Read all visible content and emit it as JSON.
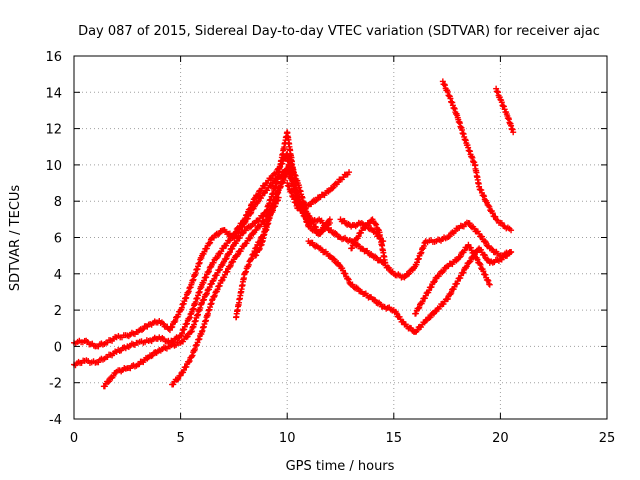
{
  "chart_data": {
    "type": "scatter",
    "title": "Day 087 of 2015, Sidereal Day-to-day VTEC variation (SDTVAR) for receiver ajac",
    "xlabel": "GPS time / hours",
    "ylabel": "SDTVAR / TECUs",
    "xlim": [
      0,
      25
    ],
    "ylim": [
      -4,
      16
    ],
    "xticks": [
      "0",
      "5",
      "10",
      "15",
      "20",
      "25"
    ],
    "yticks": [
      "-4",
      "-2",
      "0",
      "2",
      "4",
      "6",
      "8",
      "10",
      "12",
      "14",
      "16"
    ],
    "grid": true,
    "marker": "+",
    "color": "#ff0000",
    "series": [
      {
        "x": [
          0.0,
          0.5,
          1.0,
          1.5,
          2.0,
          2.5,
          3.0,
          3.5,
          4.0,
          4.5,
          5.0,
          5.5,
          6.0,
          6.5,
          7.0,
          7.5,
          8.0,
          8.5,
          9.0,
          9.5,
          10.0,
          10.5,
          11.0,
          11.5,
          12.0
        ],
        "y": [
          0.2,
          0.3,
          0.0,
          0.2,
          0.5,
          0.6,
          0.8,
          1.2,
          1.4,
          0.9,
          2.0,
          3.4,
          5.0,
          6.0,
          6.4,
          6.0,
          6.8,
          7.8,
          8.6,
          9.2,
          9.8,
          8.2,
          6.6,
          6.2,
          6.8
        ]
      },
      {
        "x": [
          0.0,
          0.5,
          1.0,
          1.5,
          2.0,
          2.5,
          3.0,
          3.5,
          4.0,
          4.5,
          5.0,
          5.5,
          6.0,
          6.5,
          7.0,
          7.5,
          8.0,
          8.5,
          9.0,
          9.5,
          10.0,
          10.5,
          11.0
        ],
        "y": [
          -1.0,
          -0.8,
          -0.9,
          -0.6,
          -0.3,
          0.0,
          0.2,
          0.3,
          0.5,
          0.2,
          0.6,
          1.8,
          3.4,
          4.6,
          5.4,
          6.2,
          7.0,
          8.2,
          9.0,
          9.6,
          10.6,
          9.0,
          7.0
        ]
      },
      {
        "x": [
          1.4,
          2.0,
          2.5,
          3.0,
          3.5,
          4.0,
          4.5,
          5.0,
          5.5,
          6.0,
          6.5,
          7.0,
          7.5,
          8.0,
          8.5,
          9.0,
          9.5,
          10.0,
          10.5,
          11.0,
          11.5,
          12.0
        ],
        "y": [
          -2.2,
          -1.4,
          -1.2,
          -1.0,
          -0.6,
          -0.2,
          0.0,
          0.2,
          0.8,
          2.4,
          3.6,
          4.6,
          5.6,
          6.4,
          6.8,
          7.4,
          9.0,
          11.8,
          8.0,
          7.2,
          6.2,
          7.0
        ]
      },
      {
        "x": [
          4.6,
          5.0,
          5.5,
          6.0,
          6.5,
          7.0,
          7.5,
          8.0,
          8.5,
          9.0,
          9.5,
          10.0
        ],
        "y": [
          -2.1,
          -1.6,
          -0.6,
          0.8,
          2.6,
          3.8,
          4.8,
          5.6,
          6.4,
          7.0,
          8.4,
          9.8
        ]
      },
      {
        "x": [
          7.6,
          7.8,
          8.0,
          8.3,
          8.6,
          9.0,
          9.2,
          9.6
        ],
        "y": [
          1.6,
          2.8,
          4.0,
          4.8,
          5.6,
          6.4,
          7.2,
          8.2
        ]
      },
      {
        "x": [
          8.5,
          8.8,
          9.0,
          9.3,
          9.6,
          10.0,
          10.2
        ],
        "y": [
          5.0,
          5.6,
          6.6,
          7.6,
          8.6,
          9.6,
          10.4
        ]
      },
      {
        "x": [
          10.0,
          10.5,
          11.0,
          11.5,
          12.0,
          12.5,
          12.9
        ],
        "y": [
          9.0,
          7.6,
          7.8,
          8.2,
          8.6,
          9.2,
          9.6
        ]
      },
      {
        "x": [
          10.0,
          10.5,
          11.0,
          11.5,
          12.0,
          12.5,
          13.0,
          13.5,
          14.0,
          14.5,
          15.0,
          15.5,
          16.0,
          16.5,
          17.0,
          17.5,
          18.0,
          18.5,
          19.0,
          19.5,
          20.0,
          20.5
        ],
        "y": [
          10.4,
          7.8,
          6.8,
          7.0,
          6.4,
          6.0,
          5.8,
          5.4,
          5.0,
          4.6,
          4.0,
          3.8,
          4.4,
          5.8,
          5.8,
          6.0,
          6.5,
          6.8,
          6.2,
          5.4,
          5.0,
          5.2
        ]
      },
      {
        "x": [
          11.0,
          11.5,
          12.0,
          12.5,
          13.0,
          13.5,
          14.0,
          14.5,
          15.0,
          15.5,
          16.0,
          16.5,
          17.0,
          17.5,
          18.0,
          18.5,
          19.0,
          19.5,
          20.0,
          20.5
        ],
        "y": [
          5.8,
          5.4,
          5.0,
          4.4,
          3.4,
          3.0,
          2.6,
          2.2,
          2.0,
          1.2,
          0.8,
          1.4,
          2.0,
          2.6,
          3.6,
          4.6,
          5.4,
          4.6,
          4.8,
          5.2
        ]
      },
      {
        "x": [
          12.5,
          13.0,
          13.5,
          14.0,
          14.5
        ],
        "y": [
          7.0,
          6.6,
          6.8,
          6.4,
          5.8
        ]
      },
      {
        "x": [
          13.0,
          13.5,
          14.0,
          14.3,
          14.6
        ],
        "y": [
          5.4,
          6.4,
          7.0,
          6.4,
          4.6
        ]
      },
      {
        "x": [
          16.0,
          16.5,
          17.0,
          17.5,
          18.0,
          18.5,
          19.0,
          19.5
        ],
        "y": [
          1.8,
          2.8,
          3.8,
          4.4,
          4.8,
          5.6,
          4.6,
          3.4
        ]
      },
      {
        "x": [
          17.3,
          17.6,
          18.0,
          18.4,
          18.8,
          19.0,
          19.4,
          19.8,
          20.2,
          20.5
        ],
        "y": [
          14.6,
          13.8,
          12.6,
          11.2,
          10.0,
          8.8,
          7.8,
          7.0,
          6.6,
          6.4
        ]
      },
      {
        "x": [
          19.8,
          20.0,
          20.3,
          20.6
        ],
        "y": [
          14.2,
          13.6,
          12.8,
          11.8
        ]
      }
    ]
  }
}
